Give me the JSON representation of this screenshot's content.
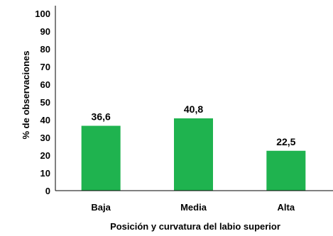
{
  "chart_data": {
    "type": "bar",
    "categories": [
      "Baja",
      "Media",
      "Alta"
    ],
    "values": [
      36.6,
      40.8,
      22.5
    ],
    "data_labels": [
      "36,6",
      "40,8",
      "22,5"
    ],
    "title": "",
    "xlabel": "Posición  y curvatura del labio superior",
    "ylabel": "% de observaciones",
    "ylim": [
      0,
      100
    ],
    "yticks": [
      "0",
      "10",
      "20",
      "30",
      "40",
      "50",
      "60",
      "70",
      "80",
      "90",
      "100"
    ],
    "grid": false,
    "legend": "none",
    "bar_color": "#1fb34f"
  }
}
